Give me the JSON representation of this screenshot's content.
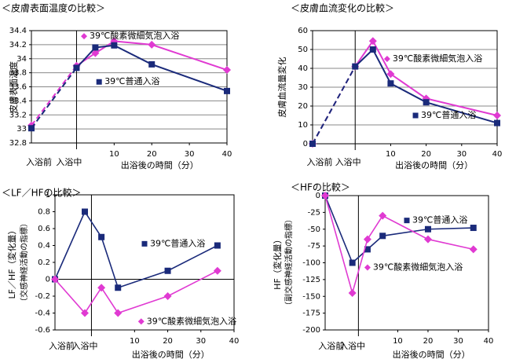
{
  "colors": {
    "series_a": "#1a2a7a",
    "series_b": "#e03ad2"
  },
  "chart_data": [
    {
      "type": "line",
      "title": "＜皮膚表面温度の比較＞",
      "ylabel": "皮膚表面温度",
      "xlabel": "出浴後の時間（分）",
      "ylim": [
        32.8,
        34.4
      ],
      "yticks": [
        "32.8",
        "33",
        "33.2",
        "33.4",
        "33.6",
        "33.8",
        "34",
        "34.2",
        "34.4"
      ],
      "xlim": [
        -12,
        40
      ],
      "xticks": [
        "10",
        "20",
        "30",
        "40"
      ],
      "category_labels": [
        {
          "label": "入浴前",
          "x": -10
        },
        {
          "label": "入浴中",
          "x": -2
        }
      ],
      "divider_x": 0,
      "grid": true,
      "series": [
        {
          "name": "39℃酸素微細気泡入浴",
          "marker": "diamond",
          "x": [
            -12,
            0,
            5,
            10,
            20,
            40
          ],
          "y": [
            33.05,
            33.9,
            34.08,
            34.25,
            34.2,
            33.84
          ],
          "label_pos": {
            "x": 2,
            "y": 34.32
          }
        },
        {
          "name": "39℃普通入浴",
          "marker": "square",
          "x": [
            -12,
            0,
            5,
            10,
            20,
            40
          ],
          "y": [
            33.01,
            33.87,
            34.16,
            34.19,
            33.92,
            33.54
          ],
          "label_pos": {
            "x": 6,
            "y": 33.67
          }
        }
      ]
    },
    {
      "type": "line",
      "title": "＜皮膚血流変化の比較＞",
      "ylabel": "皮膚血流量変化",
      "xlabel": "出浴後の時間（分）",
      "ylim": [
        0,
        60
      ],
      "yticks": [
        "0",
        "10",
        "20",
        "30",
        "40",
        "50",
        "60"
      ],
      "xlim": [
        -12,
        40
      ],
      "xticks": [
        "10",
        "20",
        "30",
        "40"
      ],
      "category_labels": [
        {
          "label": "入浴前",
          "x": -10
        },
        {
          "label": "入浴中",
          "x": -2
        }
      ],
      "divider_x": 0,
      "grid": true,
      "series": [
        {
          "name": "39℃酸素微細気泡入浴",
          "marker": "diamond",
          "x": [
            -12,
            0,
            5,
            10,
            20,
            40
          ],
          "y": [
            0,
            41,
            54.5,
            37,
            24,
            15
          ],
          "label_pos": {
            "x": 9,
            "y": 45
          }
        },
        {
          "name": "39℃普通入浴",
          "marker": "square",
          "x": [
            -12,
            0,
            5,
            10,
            20,
            40
          ],
          "y": [
            0,
            41,
            50,
            32,
            22,
            11
          ],
          "label_pos": {
            "x": 17,
            "y": 15
          }
        }
      ]
    },
    {
      "type": "line",
      "title": "＜LF／HFの比較＞",
      "ylabel": "LF／HF（変化量）",
      "ylabel2": "（交感神経活動の指標）",
      "xlabel": "出浴後の時間（分）",
      "ylim": [
        -0.6,
        1.0
      ],
      "yticks": [
        "-0.6",
        "-0.4",
        "-0.2",
        "0",
        "0.2",
        "0.4",
        "0.6",
        "0.8",
        "1"
      ],
      "xlim": [
        -14,
        40
      ],
      "xticks": [
        "10",
        "20",
        "30",
        "40"
      ],
      "category_labels": [
        {
          "label": "入浴前",
          "x": -12
        },
        {
          "label": "入浴中",
          "x": -5
        }
      ],
      "divider_x": -3,
      "grid": false,
      "series": [
        {
          "name": "39℃普通入浴",
          "marker": "square",
          "x": [
            -14,
            -5,
            0,
            5,
            20,
            35
          ],
          "y": [
            0,
            0.8,
            0.5,
            -0.1,
            0.1,
            0.4
          ],
          "label_pos": {
            "x": 13,
            "y": 0.42
          }
        },
        {
          "name": "39℃酸素微細気泡入浴",
          "marker": "diamond",
          "x": [
            -14,
            -5,
            0,
            5,
            20,
            35
          ],
          "y": [
            0,
            -0.4,
            -0.1,
            -0.4,
            -0.2,
            0.1
          ],
          "label_pos": {
            "x": 12,
            "y": -0.5
          }
        }
      ]
    },
    {
      "type": "line",
      "title": "＜HFの比較＞",
      "ylabel": "HF（変化量）",
      "ylabel2": "（副交感神経活動の指標）",
      "xlabel": "出浴後の時間（分）",
      "ylim": [
        -200,
        0
      ],
      "yticks": [
        "-200",
        "-175",
        "-150",
        "-125",
        "-100",
        "-75",
        "-50",
        "-25",
        "0"
      ],
      "xlim": [
        -14,
        40
      ],
      "xticks": [
        "10",
        "20",
        "30",
        "40"
      ],
      "category_labels": [
        {
          "label": "入浴前",
          "x": -12
        },
        {
          "label": "入浴中",
          "x": -5
        }
      ],
      "divider_x": -3,
      "grid": false,
      "series": [
        {
          "name": "39℃普通入浴",
          "marker": "square",
          "x": [
            -14,
            -5,
            0,
            5,
            20,
            35
          ],
          "y": [
            0,
            -100,
            -80,
            -60,
            -50,
            -48
          ],
          "label_pos": {
            "x": 13,
            "y": -37
          }
        },
        {
          "name": "39℃酸素微細気泡入浴",
          "marker": "diamond",
          "x": [
            -14,
            -5,
            0,
            5,
            20,
            35
          ],
          "y": [
            0,
            -145,
            -65,
            -30,
            -65,
            -80
          ],
          "label_pos": {
            "x": 0,
            "y": -107
          }
        }
      ]
    }
  ]
}
